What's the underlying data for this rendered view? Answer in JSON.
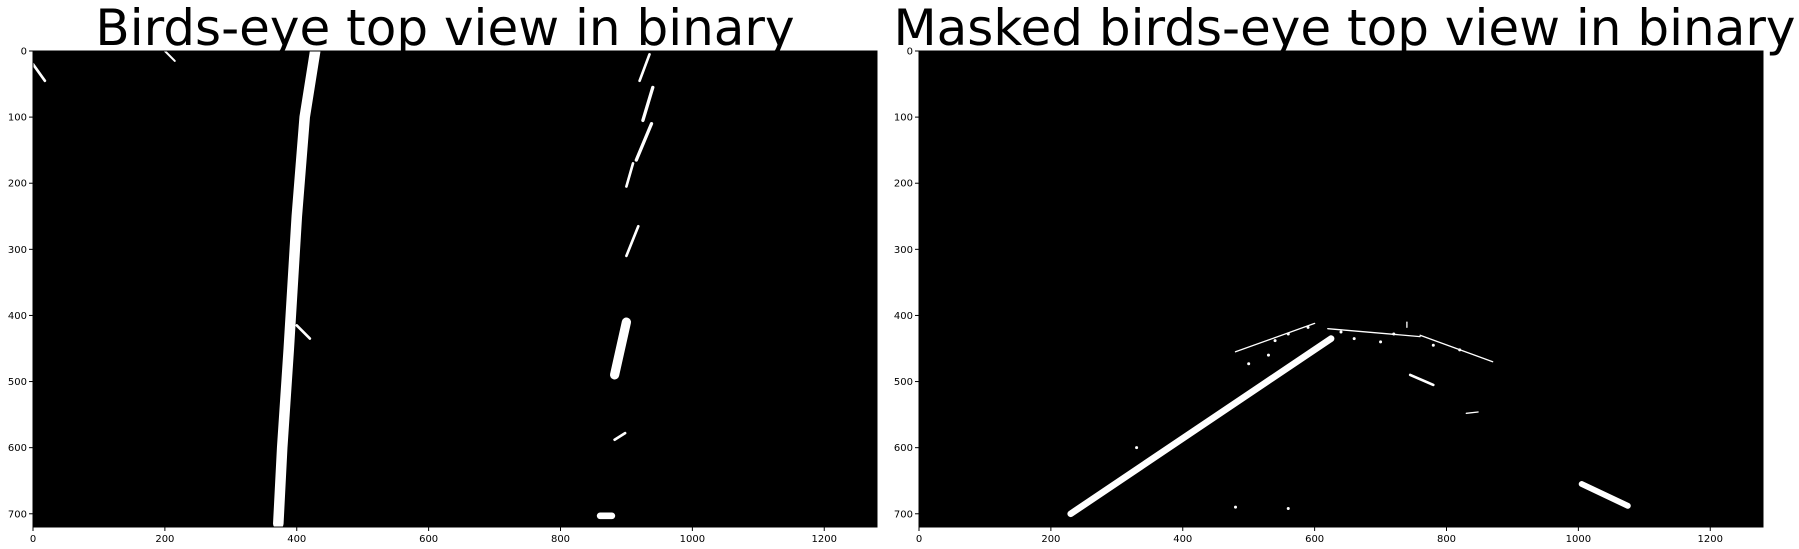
{
  "chart_data": [
    {
      "type": "image",
      "title": "Birds-eye top view in binary",
      "xlabel": "",
      "ylabel": "",
      "xlim": [
        0,
        1280
      ],
      "ylim": [
        720,
        0
      ],
      "xticks": [
        0,
        200,
        400,
        600,
        800,
        1000,
        1200
      ],
      "yticks": [
        0,
        100,
        200,
        300,
        400,
        500,
        600,
        700
      ],
      "grid": false,
      "colormap": "gray",
      "features": [
        {
          "kind": "line",
          "width": 16,
          "points": [
            [
              428,
              0
            ],
            [
              412,
              100
            ],
            [
              400,
              250
            ],
            [
              388,
              450
            ],
            [
              378,
              600
            ],
            [
              372,
              715
            ]
          ]
        },
        {
          "kind": "line",
          "width": 4,
          "points": [
            [
              0,
              20
            ],
            [
              18,
              45
            ]
          ]
        },
        {
          "kind": "line",
          "width": 3,
          "points": [
            [
              200,
              0
            ],
            [
              215,
              15
            ]
          ]
        },
        {
          "kind": "line",
          "width": 4,
          "points": [
            [
              400,
              415
            ],
            [
              420,
              435
            ]
          ]
        },
        {
          "kind": "line",
          "width": 4,
          "points": [
            [
              935,
              5
            ],
            [
              920,
              45
            ]
          ]
        },
        {
          "kind": "line",
          "width": 5,
          "points": [
            [
              940,
              55
            ],
            [
              925,
              105
            ]
          ]
        },
        {
          "kind": "line",
          "width": 5,
          "points": [
            [
              938,
              110
            ],
            [
              915,
              165
            ]
          ]
        },
        {
          "kind": "line",
          "width": 4,
          "points": [
            [
              910,
              170
            ],
            [
              900,
              205
            ]
          ]
        },
        {
          "kind": "line",
          "width": 4,
          "points": [
            [
              918,
              265
            ],
            [
              900,
              310
            ]
          ]
        },
        {
          "kind": "line",
          "width": 14,
          "points": [
            [
              900,
              410
            ],
            [
              882,
              490
            ]
          ]
        },
        {
          "kind": "line",
          "width": 4,
          "points": [
            [
              882,
              588
            ],
            [
              898,
              578
            ]
          ]
        },
        {
          "kind": "line",
          "width": 10,
          "points": [
            [
              860,
              703
            ],
            [
              878,
              703
            ]
          ]
        }
      ]
    },
    {
      "type": "image",
      "title": "Masked birds-eye top view in binary",
      "xlabel": "",
      "ylabel": "",
      "xlim": [
        0,
        1280
      ],
      "ylim": [
        720,
        0
      ],
      "xticks": [
        0,
        200,
        400,
        600,
        800,
        1000,
        1200
      ],
      "yticks": [
        0,
        100,
        200,
        300,
        400,
        500,
        600,
        700
      ],
      "grid": false,
      "colormap": "gray",
      "features": [
        {
          "kind": "line",
          "width": 10,
          "points": [
            [
              230,
              700
            ],
            [
              625,
              435
            ]
          ]
        },
        {
          "kind": "line",
          "width": 2,
          "points": [
            [
              480,
              455
            ],
            [
              600,
              412
            ]
          ]
        },
        {
          "kind": "line",
          "width": 2,
          "points": [
            [
              620,
              420
            ],
            [
              760,
              432
            ]
          ]
        },
        {
          "kind": "line",
          "width": 2,
          "points": [
            [
              760,
              430
            ],
            [
              870,
              470
            ]
          ]
        },
        {
          "kind": "line",
          "width": 2,
          "points": [
            [
              740,
              410
            ],
            [
              740,
              418
            ]
          ]
        },
        {
          "kind": "line",
          "width": 4,
          "points": [
            [
              745,
              490
            ],
            [
              780,
              505
            ]
          ]
        },
        {
          "kind": "line",
          "width": 2,
          "points": [
            [
              830,
              548
            ],
            [
              848,
              546
            ]
          ]
        },
        {
          "kind": "line",
          "width": 9,
          "points": [
            [
              1005,
              655
            ],
            [
              1075,
              688
            ]
          ]
        },
        {
          "kind": "dot",
          "r": 1.5,
          "points": [
            [
              500,
              473
            ],
            [
              540,
              438
            ],
            [
              560,
              428
            ],
            [
              640,
              425
            ],
            [
              660,
              435
            ],
            [
              700,
              440
            ],
            [
              720,
              428
            ],
            [
              780,
              445
            ],
            [
              820,
              452
            ],
            [
              590,
              418
            ],
            [
              530,
              460
            ],
            [
              330,
              600
            ],
            [
              480,
              690
            ],
            [
              560,
              692
            ]
          ]
        }
      ]
    }
  ]
}
